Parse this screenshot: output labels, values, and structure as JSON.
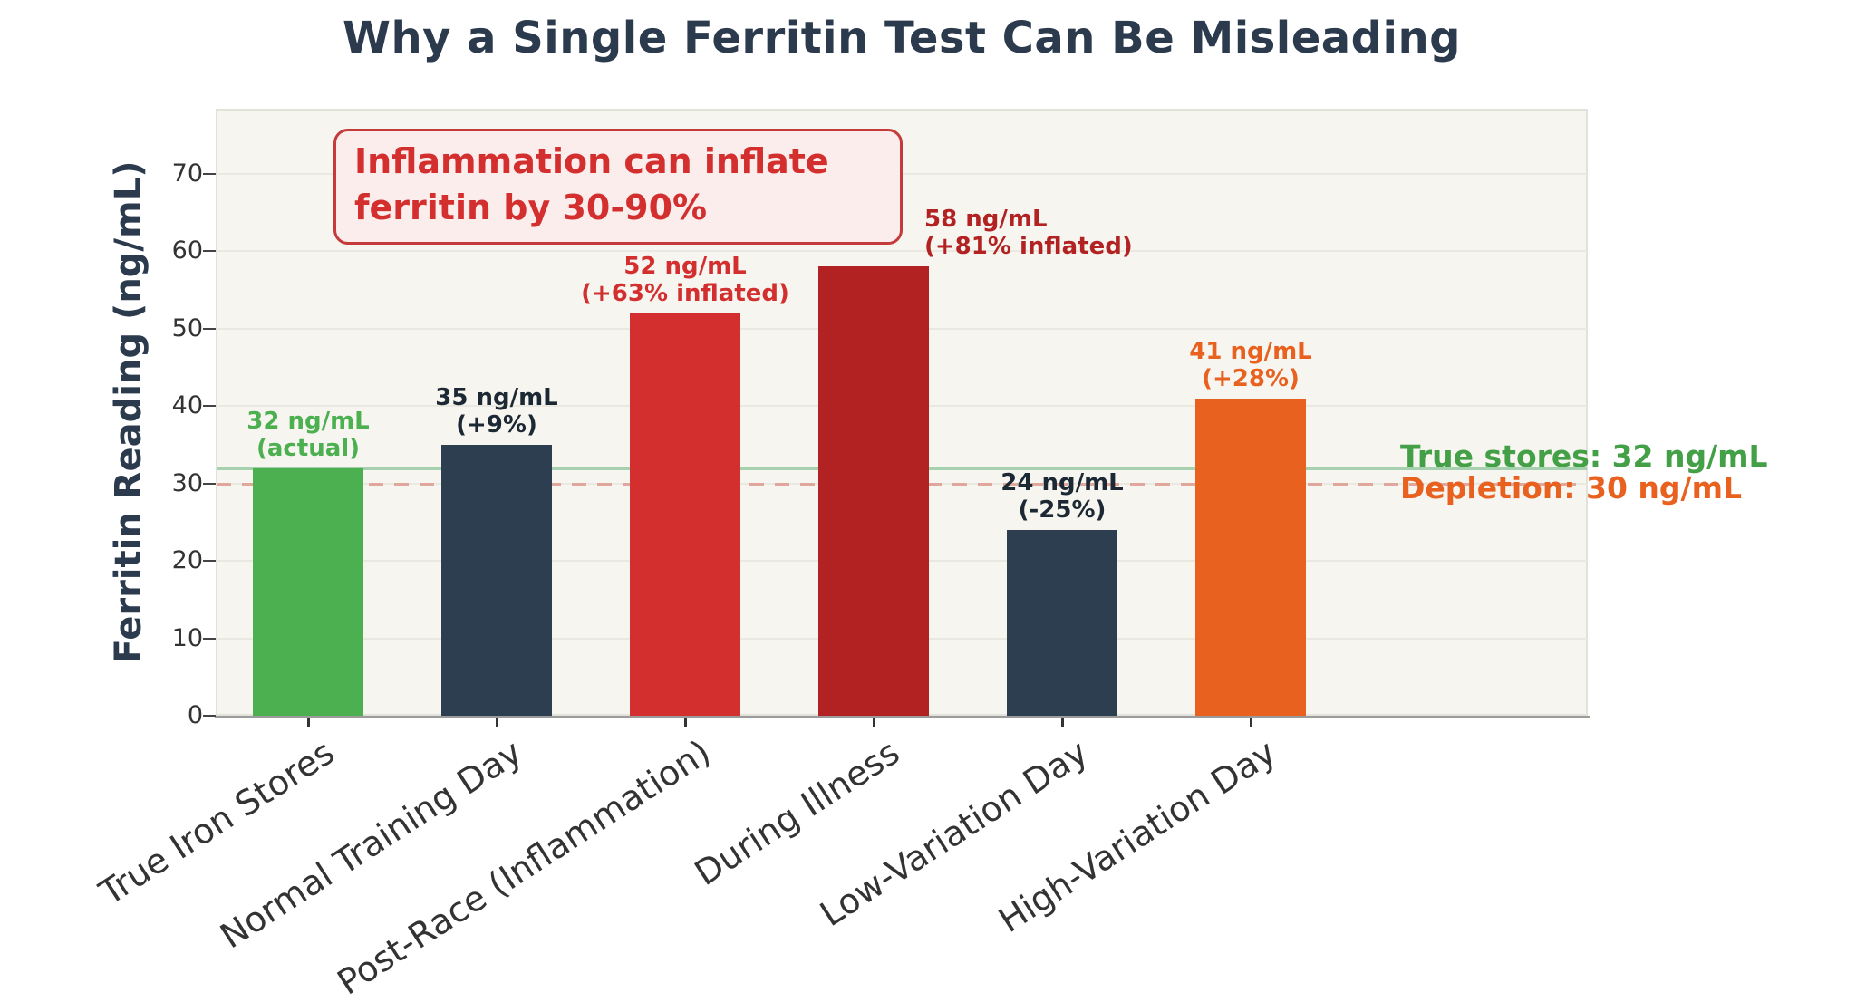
{
  "chart_data": {
    "type": "bar",
    "title": "Why a Single Ferritin Test Can Be Misleading",
    "xlabel": "",
    "ylabel": "Ferritin Reading (ng/mL)",
    "ylim": [
      0,
      78
    ],
    "yticks": [
      0,
      10,
      20,
      30,
      40,
      50,
      60,
      70
    ],
    "grid": true,
    "legend_position": "none",
    "categories": [
      "True Iron Stores",
      "Normal Training Day",
      "Post-Race (Inflammation)",
      "During Illness",
      "Low-Variation Day",
      "High-Variation Day"
    ],
    "values": [
      32,
      35,
      52,
      58,
      24,
      41
    ],
    "bar_colors": [
      "#4caf50",
      "#2c3e50",
      "#d32f2f",
      "#b22222",
      "#2c3e50",
      "#e8611f"
    ],
    "bar_value_labels": [
      {
        "line1": "32 ng/mL",
        "line2": "(actual)",
        "color": "#4caf50"
      },
      {
        "line1": "35 ng/mL",
        "line2": "(+9%)",
        "color": "#1c2833"
      },
      {
        "line1": "52 ng/mL",
        "line2": "(+63% inflated)",
        "color": "#d32f2f"
      },
      {
        "line1": "58 ng/mL",
        "line2": "(+81% inflated)",
        "color": "#b22222"
      },
      {
        "line1": "24 ng/mL",
        "line2": "(-25%)",
        "color": "#1c2833"
      },
      {
        "line1": "41 ng/mL",
        "line2": "(+28%)",
        "color": "#e8611f"
      }
    ],
    "reference_lines": [
      {
        "value": 32,
        "style": "solid",
        "color": "#a6d1ae",
        "label": "True stores: 32 ng/mL",
        "label_color": "#43a047"
      },
      {
        "value": 30,
        "style": "dashed",
        "color": "#e0a79c",
        "label": "Depletion: 30 ng/mL",
        "label_color": "#e8611f"
      }
    ],
    "annotation": {
      "line1": "Inflammation can inflate",
      "line2": "ferritin by 30-90%",
      "text_color": "#d32f2f",
      "border_color": "#c53a3a",
      "background": "#fceded"
    },
    "title_color": "#2c3a4e",
    "axis_text_color": "#333333",
    "plot_background": "#f6f5f0",
    "grid_color": "#e9e8e1"
  }
}
